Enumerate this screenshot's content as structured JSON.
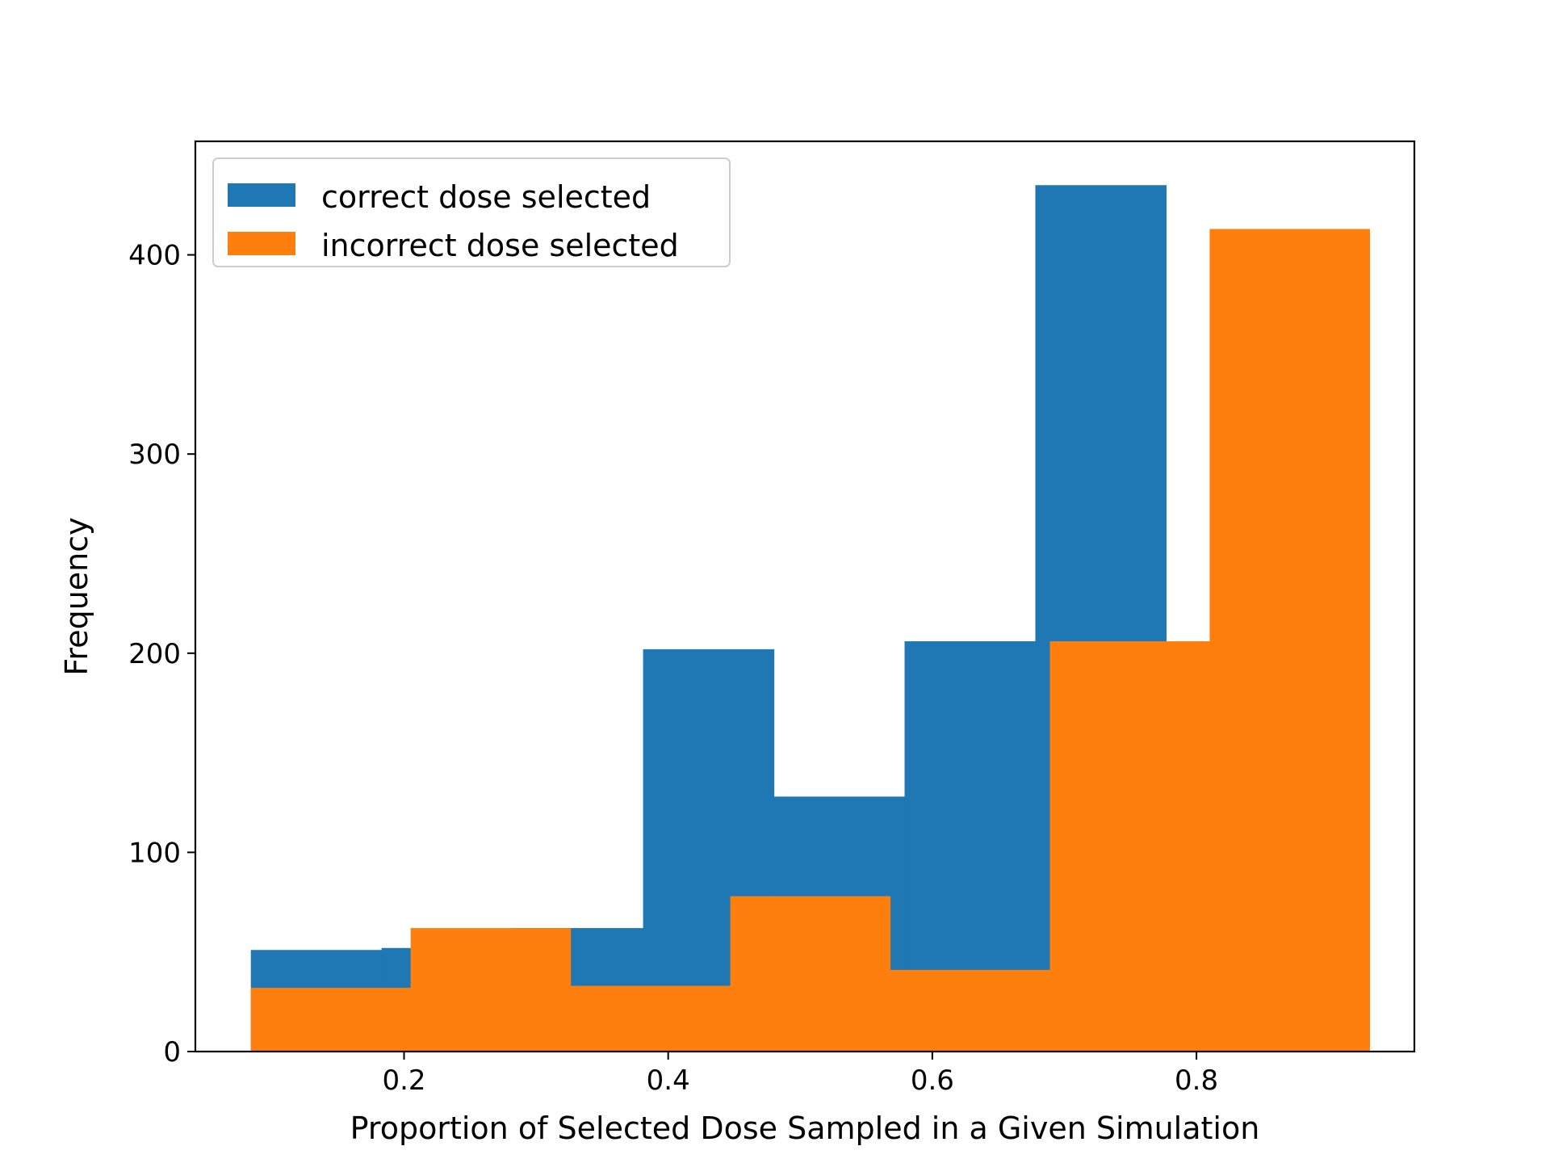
{
  "chart_data": {
    "type": "bar",
    "chart_kind": "histogram",
    "xlabel": "Proportion of Selected Dose Sampled in a Given Simulation",
    "ylabel": "Frequency",
    "xlim": [
      0.042,
      0.965
    ],
    "ylim": [
      0,
      457
    ],
    "x_ticks": [
      0.2,
      0.4,
      0.6,
      0.8
    ],
    "x_tick_labels": [
      "0.2",
      "0.4",
      "0.6",
      "0.8"
    ],
    "y_ticks": [
      0,
      100,
      200,
      300,
      400
    ],
    "y_tick_labels": [
      "0",
      "100",
      "200",
      "300",
      "400"
    ],
    "grid": false,
    "legend_position": "top-left",
    "series": [
      {
        "name": "correct dose selected",
        "color": "#1f77b4",
        "bin_edges": [
          0.084,
          0.183,
          0.282,
          0.381,
          0.48,
          0.579,
          0.678,
          0.777
        ],
        "values": [
          51,
          52,
          62,
          202,
          128,
          206,
          435
        ]
      },
      {
        "name": "incorrect dose selected",
        "color": "#ff7f0e",
        "bin_edges": [
          0.084,
          0.205,
          0.326,
          0.447,
          0.568,
          0.689,
          0.81,
          0.931
        ],
        "values": [
          32,
          62,
          33,
          78,
          41,
          206,
          413
        ]
      }
    ]
  }
}
